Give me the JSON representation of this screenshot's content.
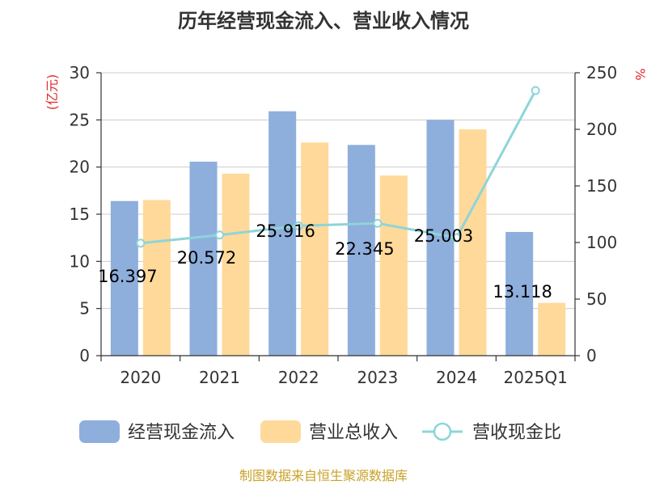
{
  "chart_data": {
    "type": "bar",
    "title": "历年经营现金流入、营业收入情况",
    "categories": [
      "2020",
      "2021",
      "2022",
      "2023",
      "2024",
      "2025Q1"
    ],
    "left_axis": {
      "unit": "(亿元)",
      "ylim": [
        0,
        30
      ],
      "ticks": [
        0,
        5,
        10,
        15,
        20,
        25,
        30
      ]
    },
    "right_axis": {
      "unit": "%",
      "ylim": [
        0,
        250
      ],
      "ticks": [
        0,
        50,
        100,
        150,
        200,
        250
      ]
    },
    "series": [
      {
        "name": "经营现金流入",
        "type": "bar",
        "axis": "left",
        "color": "#8eaedc",
        "values": [
          16.397,
          20.572,
          25.916,
          22.345,
          25.003,
          13.118
        ],
        "labels": [
          "16.397",
          "20.572",
          "25.916",
          "22.345",
          "25.003",
          "13.118"
        ]
      },
      {
        "name": "营业总收入",
        "type": "bar",
        "axis": "left",
        "color": "#ffd99a",
        "values": [
          16.5,
          19.3,
          22.6,
          19.1,
          24.0,
          5.6
        ]
      },
      {
        "name": "营收现金比",
        "type": "line",
        "axis": "right",
        "color": "#8dd5d8",
        "values": [
          99.4,
          106.6,
          114.7,
          117.0,
          104.2,
          234.3
        ]
      }
    ],
    "grid": true,
    "legend_position": "bottom"
  },
  "unit_color": "#e0282e",
  "source_text": "制图数据来自恒生聚源数据库",
  "source_color": "#c9a227"
}
